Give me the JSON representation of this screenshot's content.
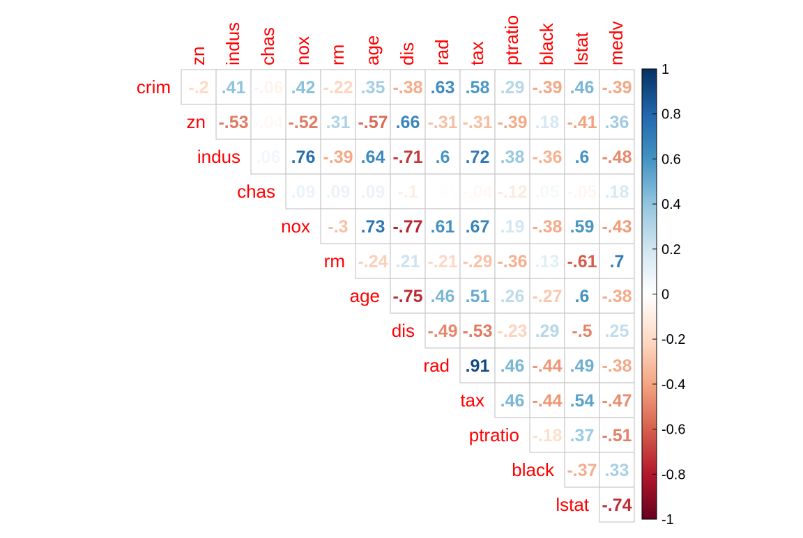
{
  "chart_data": {
    "type": "heatmap",
    "title": "",
    "style": "upper-triangle correlation matrix, coefficients shown as colored numbers",
    "diagonal_shown": false,
    "row_labels": [
      "crim",
      "zn",
      "indus",
      "chas",
      "nox",
      "rm",
      "age",
      "dis",
      "rad",
      "tax",
      "ptratio",
      "black",
      "lstat"
    ],
    "col_labels": [
      "zn",
      "indus",
      "chas",
      "nox",
      "rm",
      "age",
      "dis",
      "rad",
      "tax",
      "ptratio",
      "black",
      "lstat",
      "medv"
    ],
    "cells": [
      [
        -0.2,
        0.41,
        -0.06,
        0.42,
        -0.22,
        0.35,
        -0.38,
        0.63,
        0.58,
        0.29,
        -0.39,
        0.46,
        -0.39
      ],
      [
        null,
        -0.53,
        -0.04,
        -0.52,
        0.31,
        -0.57,
        0.66,
        -0.31,
        -0.31,
        -0.39,
        0.18,
        -0.41,
        0.36
      ],
      [
        null,
        null,
        0.06,
        0.76,
        -0.39,
        0.64,
        -0.71,
        0.6,
        0.72,
        0.38,
        -0.36,
        0.6,
        -0.48
      ],
      [
        null,
        null,
        null,
        0.09,
        0.09,
        0.09,
        -0.1,
        -0.01,
        -0.04,
        -0.12,
        0.05,
        -0.05,
        0.18
      ],
      [
        null,
        null,
        null,
        null,
        -0.3,
        0.73,
        -0.77,
        0.61,
        0.67,
        0.19,
        -0.38,
        0.59,
        -0.43
      ],
      [
        null,
        null,
        null,
        null,
        null,
        -0.24,
        0.21,
        -0.21,
        -0.29,
        -0.36,
        0.13,
        -0.61,
        0.7
      ],
      [
        null,
        null,
        null,
        null,
        null,
        null,
        -0.75,
        0.46,
        0.51,
        0.26,
        -0.27,
        0.6,
        -0.38
      ],
      [
        null,
        null,
        null,
        null,
        null,
        null,
        null,
        -0.49,
        -0.53,
        -0.23,
        0.29,
        -0.5,
        0.25
      ],
      [
        null,
        null,
        null,
        null,
        null,
        null,
        null,
        null,
        0.91,
        0.46,
        -0.44,
        0.49,
        -0.38
      ],
      [
        null,
        null,
        null,
        null,
        null,
        null,
        null,
        null,
        null,
        0.46,
        -0.44,
        0.54,
        -0.47
      ],
      [
        null,
        null,
        null,
        null,
        null,
        null,
        null,
        null,
        null,
        null,
        -0.18,
        0.37,
        -0.51
      ],
      [
        null,
        null,
        null,
        null,
        null,
        null,
        null,
        null,
        null,
        null,
        null,
        -0.37,
        0.33
      ],
      [
        null,
        null,
        null,
        null,
        null,
        null,
        null,
        null,
        null,
        null,
        null,
        null,
        -0.74
      ]
    ],
    "colorbar": {
      "ticks": [
        "1",
        "0.8",
        "0.6",
        "0.4",
        "0.2",
        "0",
        "-0.2",
        "-0.4",
        "-0.6",
        "-0.8",
        "-1"
      ],
      "range": [
        -1,
        1
      ],
      "colors": [
        "#67001F",
        "#B2182B",
        "#D6604D",
        "#F4A582",
        "#FDDBC7",
        "#FFFFFF",
        "#D1E5F0",
        "#92C5DE",
        "#4393C3",
        "#2166AC",
        "#053061"
      ]
    }
  }
}
